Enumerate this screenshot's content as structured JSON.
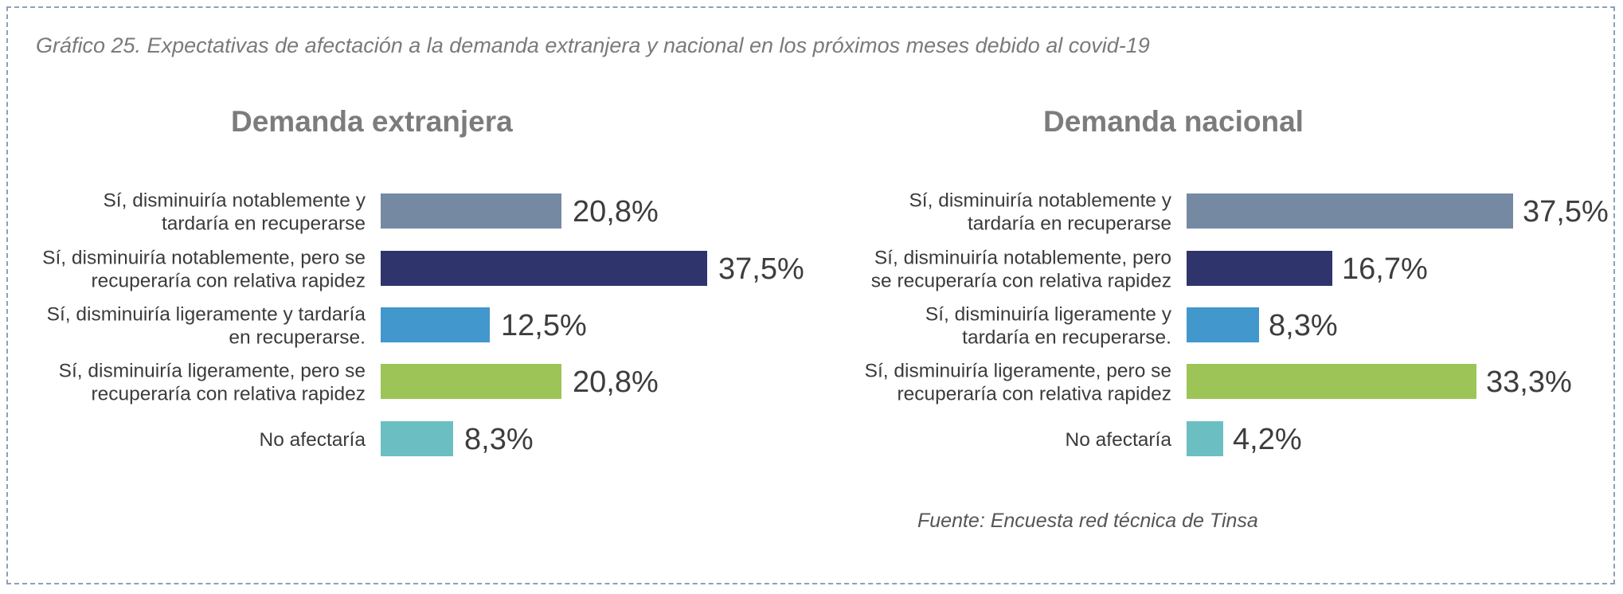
{
  "figure": {
    "title": "Gráfico 25.  Expectativas de afectación a la demanda extranjera y nacional en los próximos meses debido al covid-19",
    "source": "Fuente: Encuesta red técnica de Tinsa"
  },
  "chart_data": [
    {
      "type": "bar",
      "orientation": "horizontal",
      "title": "Demanda extranjera",
      "unit": "%",
      "categories": [
        [
          "Sí, disminuiría notablemente y",
          "tardaría en recuperarse"
        ],
        [
          "Sí, disminuiría notablemente, pero se",
          "recuperaría con relativa rapidez"
        ],
        [
          "Sí, disminuiría ligeramente y tardaría",
          "en recuperarse."
        ],
        [
          "Sí, disminuiría ligeramente, pero se",
          "recuperaría con relativa rapidez"
        ],
        [
          "No afectaría"
        ]
      ],
      "values": [
        20.8,
        37.5,
        12.5,
        20.8,
        8.3
      ],
      "value_labels": [
        "20,8%",
        "37,5%",
        "12,5%",
        "20,8%",
        "8,3%"
      ],
      "colors": [
        "#7589a3",
        "#2f346c",
        "#4298cc",
        "#9dc456",
        "#6bbfc3"
      ],
      "xlim": [
        0,
        37.5
      ],
      "grid": false,
      "legend": "none"
    },
    {
      "type": "bar",
      "orientation": "horizontal",
      "title": "Demanda nacional",
      "unit": "%",
      "categories": [
        [
          "Sí, disminuiría notablemente y",
          "tardaría en recuperarse"
        ],
        [
          "Sí, disminuiría notablemente, pero",
          "se recuperaría con relativa rapidez"
        ],
        [
          "Sí, disminuiría ligeramente y",
          "tardaría en recuperarse."
        ],
        [
          "Sí, disminuiría ligeramente, pero se",
          "recuperaría con relativa rapidez"
        ],
        [
          "No afectaría"
        ]
      ],
      "values": [
        37.5,
        16.7,
        8.3,
        33.3,
        4.2
      ],
      "value_labels": [
        "37,5%",
        "16,7%",
        "8,3%",
        "33,3%",
        "4,2%"
      ],
      "colors": [
        "#7589a3",
        "#2f346c",
        "#4298cc",
        "#9dc456",
        "#6bbfc3"
      ],
      "xlim": [
        0,
        37.5
      ],
      "grid": false,
      "legend": "none"
    }
  ]
}
